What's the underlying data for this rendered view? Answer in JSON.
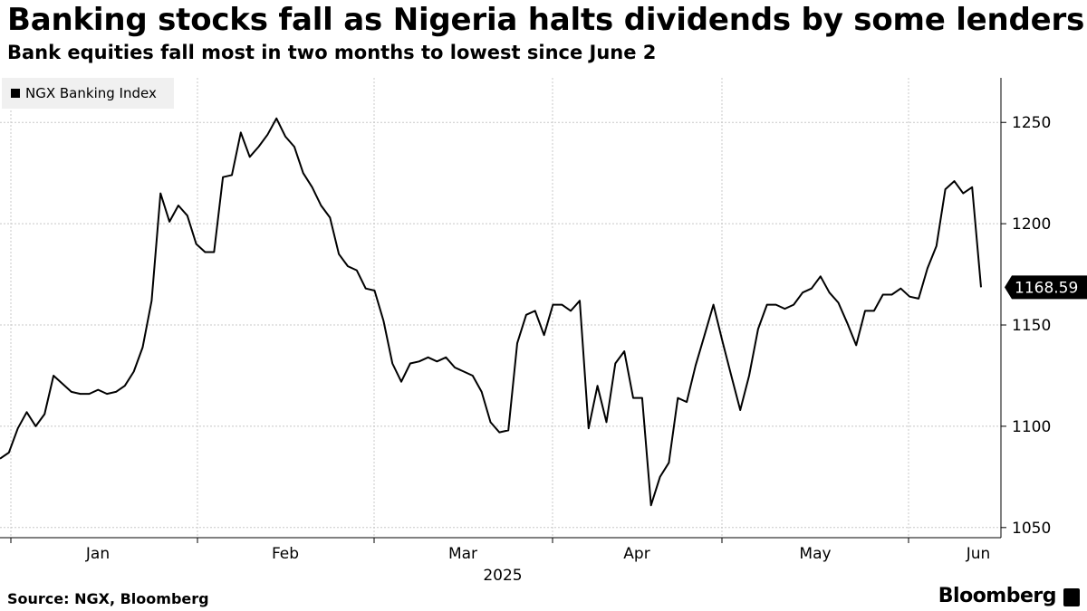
{
  "header": {
    "title": "Banking stocks fall as Nigeria halts dividends by some lenders",
    "subtitle": "Bank equities fall most in two months to lowest since June 2"
  },
  "footer": {
    "source": "Source: NGX, Bloomberg",
    "brand": "Bloomberg"
  },
  "colors": {
    "line": "#000000",
    "grid": "#c8c8c8",
    "legend_bg": "#f0f0f0"
  },
  "chart_data": {
    "type": "line",
    "title": "",
    "legend": [
      "NGX Banking Index"
    ],
    "legend_placement": "top-left",
    "grid": true,
    "xlabel": "2025",
    "ylabel": "",
    "ylim": [
      1045,
      1272
    ],
    "y_ticks": [
      1050,
      1100,
      1150,
      1200,
      1250
    ],
    "x_ticks": [
      "Jan",
      "Feb",
      "Mar",
      "Apr",
      "May",
      "Jun"
    ],
    "x_year_label": "2025",
    "last_value_label": "1168.59",
    "series": [
      {
        "name": "NGX Banking Index",
        "values": [
          1084,
          1087,
          1099,
          1107,
          1100,
          1106,
          1125,
          1121,
          1117,
          1116,
          1116,
          1118,
          1116,
          1117,
          1120,
          1127,
          1139,
          1162,
          1215,
          1201,
          1209,
          1204,
          1190,
          1186,
          1186,
          1223,
          1224,
          1245,
          1233,
          1238,
          1244,
          1252,
          1243,
          1238,
          1225,
          1218,
          1209,
          1203,
          1185,
          1179,
          1177,
          1168,
          1167,
          1152,
          1131,
          1122,
          1131,
          1132,
          1134,
          1132,
          1134,
          1129,
          1127,
          1125,
          1117,
          1102,
          1097,
          1098,
          1141,
          1155,
          1157,
          1145,
          1160,
          1160,
          1157,
          1162,
          1099,
          1120,
          1102,
          1131,
          1137,
          1114,
          1114,
          1061,
          1075,
          1082,
          1114,
          1112,
          1130,
          1145,
          1160,
          1142,
          1125,
          1108,
          1125,
          1148,
          1160,
          1160,
          1158,
          1160,
          1166,
          1168,
          1174,
          1166,
          1161,
          1151,
          1140,
          1157,
          1157,
          1165,
          1165,
          1168,
          1164,
          1163,
          1178,
          1189,
          1217,
          1221,
          1215,
          1218,
          1168.59
        ]
      }
    ]
  }
}
